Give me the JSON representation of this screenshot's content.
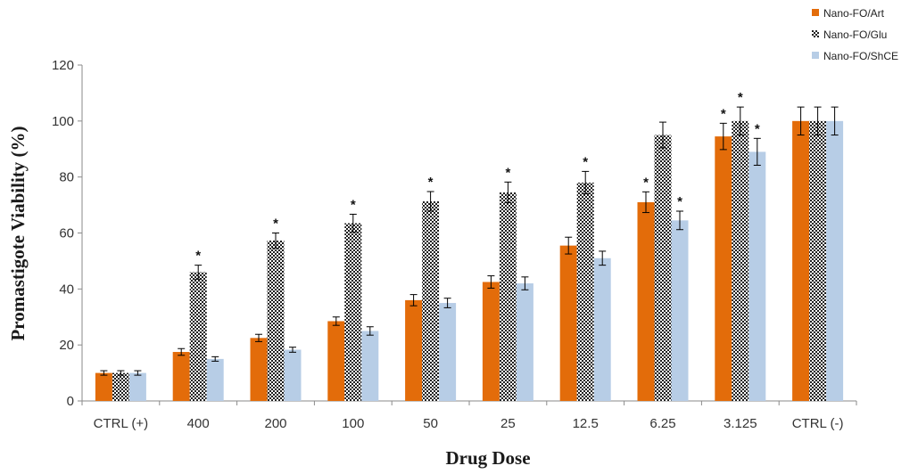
{
  "chart_data": {
    "type": "bar",
    "title": "",
    "xlabel": "Drug Dose",
    "ylabel": "Promastigote Viability (%)",
    "ylim": [
      0,
      120
    ],
    "yticks": [
      "0",
      "20",
      "40",
      "60",
      "80",
      "100",
      "120"
    ],
    "categories": [
      "CTRL (+)",
      "400",
      "200",
      "100",
      "50",
      "25",
      "12.5",
      "6.25",
      "3.125",
      "CTRL (-)"
    ],
    "legend_position": "top-right",
    "grid": false,
    "series": [
      {
        "name": "Nano-FO/Art",
        "color": "#e36c0a",
        "pattern": "solid",
        "values": [
          10,
          17.5,
          22.5,
          28.5,
          36,
          42.5,
          55.5,
          71,
          94.5,
          100
        ],
        "errors": [
          0.8,
          1.2,
          1.3,
          1.5,
          2,
          2.2,
          3,
          3.7,
          4.7,
          5
        ],
        "significant": [
          false,
          false,
          false,
          false,
          false,
          false,
          false,
          true,
          true,
          false
        ]
      },
      {
        "name": "Nano-FO/Glu",
        "color": "#222222",
        "pattern": "checker",
        "values": [
          10,
          46,
          57.3,
          63.5,
          71.3,
          74.5,
          78,
          95,
          100,
          100
        ],
        "errors": [
          0.8,
          2.5,
          2.7,
          3.2,
          3.5,
          3.7,
          4,
          4.6,
          5,
          5
        ],
        "significant": [
          false,
          true,
          true,
          true,
          true,
          true,
          true,
          false,
          true,
          false
        ]
      },
      {
        "name": "Nano-FO/ShCE",
        "color": "#b7cde6",
        "pattern": "solid",
        "values": [
          10,
          15,
          18.3,
          25,
          35,
          42,
          51,
          64.5,
          89,
          100
        ],
        "errors": [
          0.8,
          0.8,
          0.9,
          1.5,
          1.7,
          2.3,
          2.5,
          3.3,
          4.8,
          5
        ],
        "significant": [
          false,
          false,
          false,
          false,
          false,
          false,
          false,
          true,
          true,
          false
        ]
      }
    ],
    "significance_marker": "*"
  }
}
